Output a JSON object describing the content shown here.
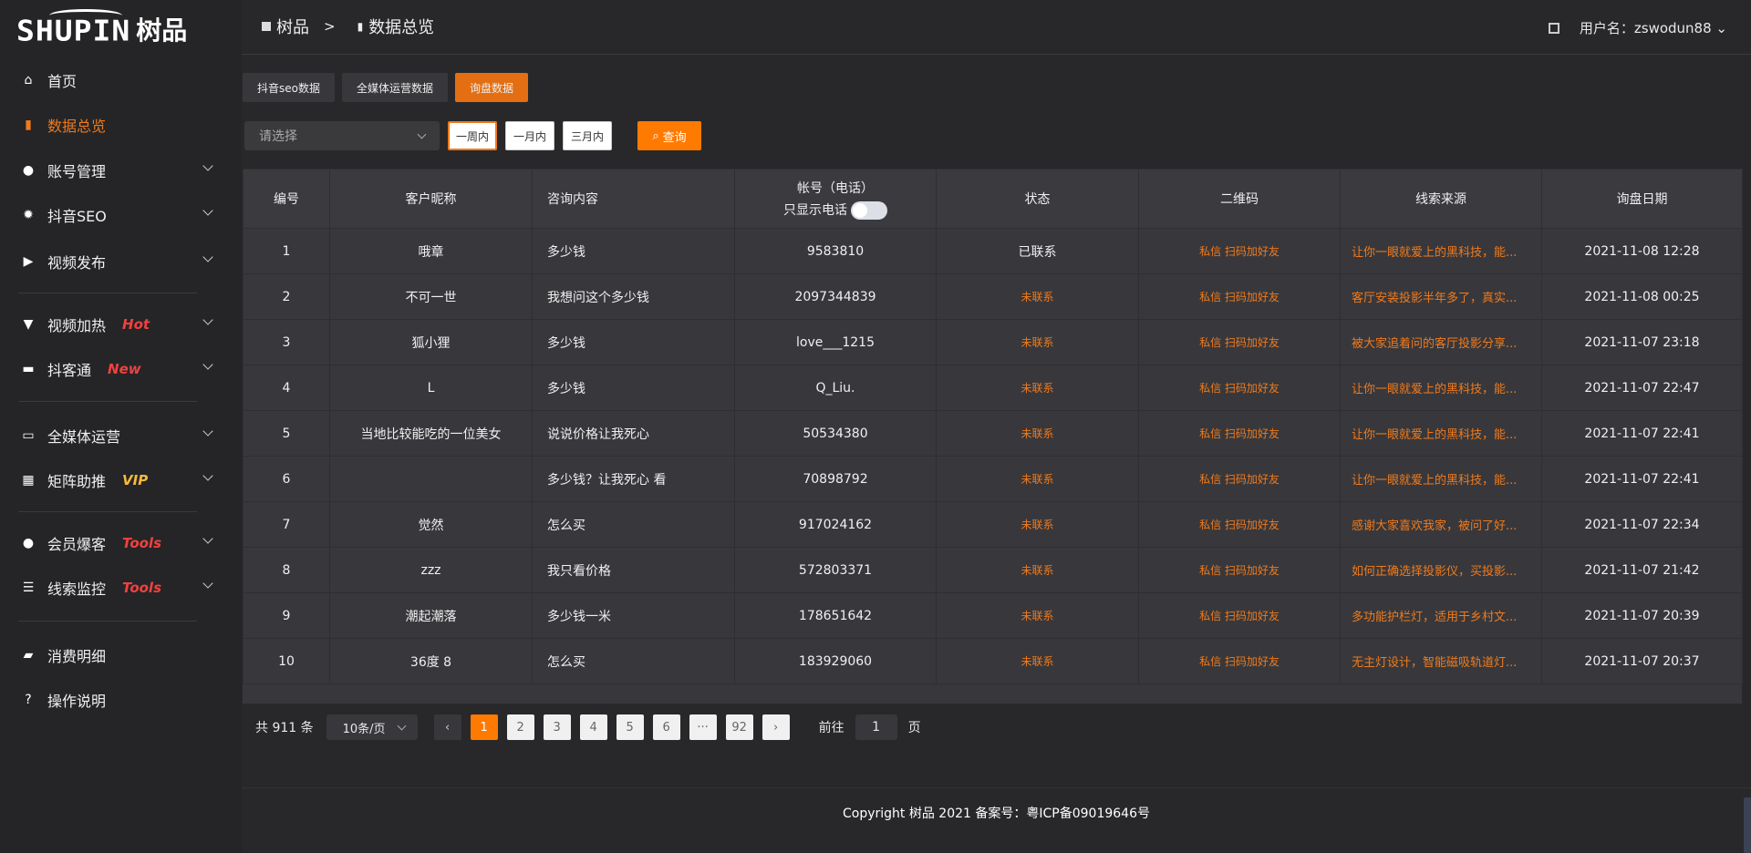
{
  "logo": {
    "en": "SHUPIN",
    "cn": "树品"
  },
  "breadcrumb": {
    "home": "树品",
    "sep": ">",
    "current": "数据总览"
  },
  "user": {
    "label": "用户名：zswodun88"
  },
  "sidebar": {
    "items": [
      {
        "label": "首页",
        "icon": "home-icon",
        "active": false
      },
      {
        "label": "数据总览",
        "icon": "bar-chart-icon",
        "active": true
      },
      {
        "label": "账号管理",
        "icon": "user-icon",
        "chevron": true
      },
      {
        "label": "抖音SEO",
        "icon": "gear-icon",
        "chevron": true
      },
      {
        "label": "视频发布",
        "icon": "camera-icon",
        "chevron": true
      },
      {
        "label": "视频加热",
        "icon": "brush-icon",
        "badge": "Hot",
        "badge_color": "#f0413f",
        "chevron": true
      },
      {
        "label": "抖客通",
        "icon": "chat-icon",
        "badge": "New",
        "badge_color": "#f0413f",
        "chevron": true
      },
      {
        "label": "全媒体运营",
        "icon": "monitor-icon",
        "chevron": true
      },
      {
        "label": "矩阵助推",
        "icon": "grid-icon",
        "badge": "VIP",
        "badge_color": "#f5b93a",
        "chevron": true
      },
      {
        "label": "会员爆客",
        "icon": "user-icon",
        "badge": "Tools",
        "badge_color": "#f0413f",
        "chevron": true
      },
      {
        "label": "线索监控",
        "icon": "sliders-icon",
        "badge": "Tools",
        "badge_color": "#f0413f",
        "chevron": true
      },
      {
        "label": "消费明细",
        "icon": "wallet-icon"
      },
      {
        "label": "操作说明",
        "icon": "help-icon"
      }
    ]
  },
  "tabs": [
    "抖音seo数据",
    "全媒体运营数据",
    "询盘数据"
  ],
  "active_tab": 2,
  "filters": {
    "select_placeholder": "请选择",
    "ranges": [
      "一周内",
      "一月内",
      "三月内"
    ],
    "active_range": 0,
    "query": "查询"
  },
  "table": {
    "headers": [
      "编号",
      "客户昵称",
      "咨询内容",
      "帐号（电话）",
      "状态",
      "二维码",
      "线索来源",
      "询盘日期"
    ],
    "phone_toggle_label": "只显示电话",
    "phone_toggle_on": false,
    "qr_text": "私信 扫码加好友",
    "rows": [
      [
        "1",
        "哦章",
        "多少钱",
        "9583810",
        "已联系",
        "私信 扫码加好友",
        "让你一眼就爱上的黑科技，能...",
        "2021-11-08 12:28"
      ],
      [
        "2",
        "不可一世",
        "我想问这个多少钱",
        "2097344839",
        "未联系",
        "私信 扫码加好友",
        "客厅安装投影半年多了，真实...",
        "2021-11-08 00:25"
      ],
      [
        "3",
        "狐小狸",
        "多少钱",
        "love___1215",
        "未联系",
        "私信 扫码加好友",
        "被大家追着问的客厅投影分享...",
        "2021-11-07 23:18"
      ],
      [
        "4",
        "L",
        "多少钱",
        "Q_Liu.",
        "未联系",
        "私信 扫码加好友",
        "让你一眼就爱上的黑科技，能...",
        "2021-11-07 22:47"
      ],
      [
        "5",
        "当地比较能吃的一位美女",
        "说说价格让我死心",
        "50534380",
        "未联系",
        "私信 扫码加好友",
        "让你一眼就爱上的黑科技，能...",
        "2021-11-07 22:41"
      ],
      [
        "6",
        "",
        "多少钱？让我死心 看",
        "70898792",
        "未联系",
        "私信 扫码加好友",
        "让你一眼就爱上的黑科技，能...",
        "2021-11-07 22:41"
      ],
      [
        "7",
        "觉然",
        "怎么买",
        "917024162",
        "未联系",
        "私信 扫码加好友",
        "感谢大家喜欢我家，被问了好...",
        "2021-11-07 22:34"
      ],
      [
        "8",
        "zzz",
        "我只看价格",
        "572803371",
        "未联系",
        "私信 扫码加好友",
        "如何正确选择投影仪，买投影...",
        "2021-11-07 21:42"
      ],
      [
        "9",
        "潮起潮落",
        "多少钱一米",
        "178651642",
        "未联系",
        "私信 扫码加好友",
        "多功能护栏灯，适用于乡村文...",
        "2021-11-07 20:39"
      ],
      [
        "10",
        "36度 8",
        "怎么买",
        "183929060",
        "未联系",
        "私信 扫码加好友",
        "无主灯设计，智能磁吸轨道灯...",
        "2021-11-07 20:37"
      ]
    ]
  },
  "pagination": {
    "total": "共 911 条",
    "page_size": "10条/页",
    "pages": [
      "1",
      "2",
      "3",
      "4",
      "5",
      "6",
      "···",
      "92"
    ],
    "current": "1",
    "goto_label": "前往",
    "goto_value": "1",
    "goto_suffix": "页"
  },
  "footer": "Copyright 树品 2021 备案号：粤ICP备09019646号",
  "colors": {
    "accent": "#ff7a00",
    "link": "#f07a1c",
    "badge_red": "#f0413f",
    "badge_vip": "#f5b93a"
  }
}
